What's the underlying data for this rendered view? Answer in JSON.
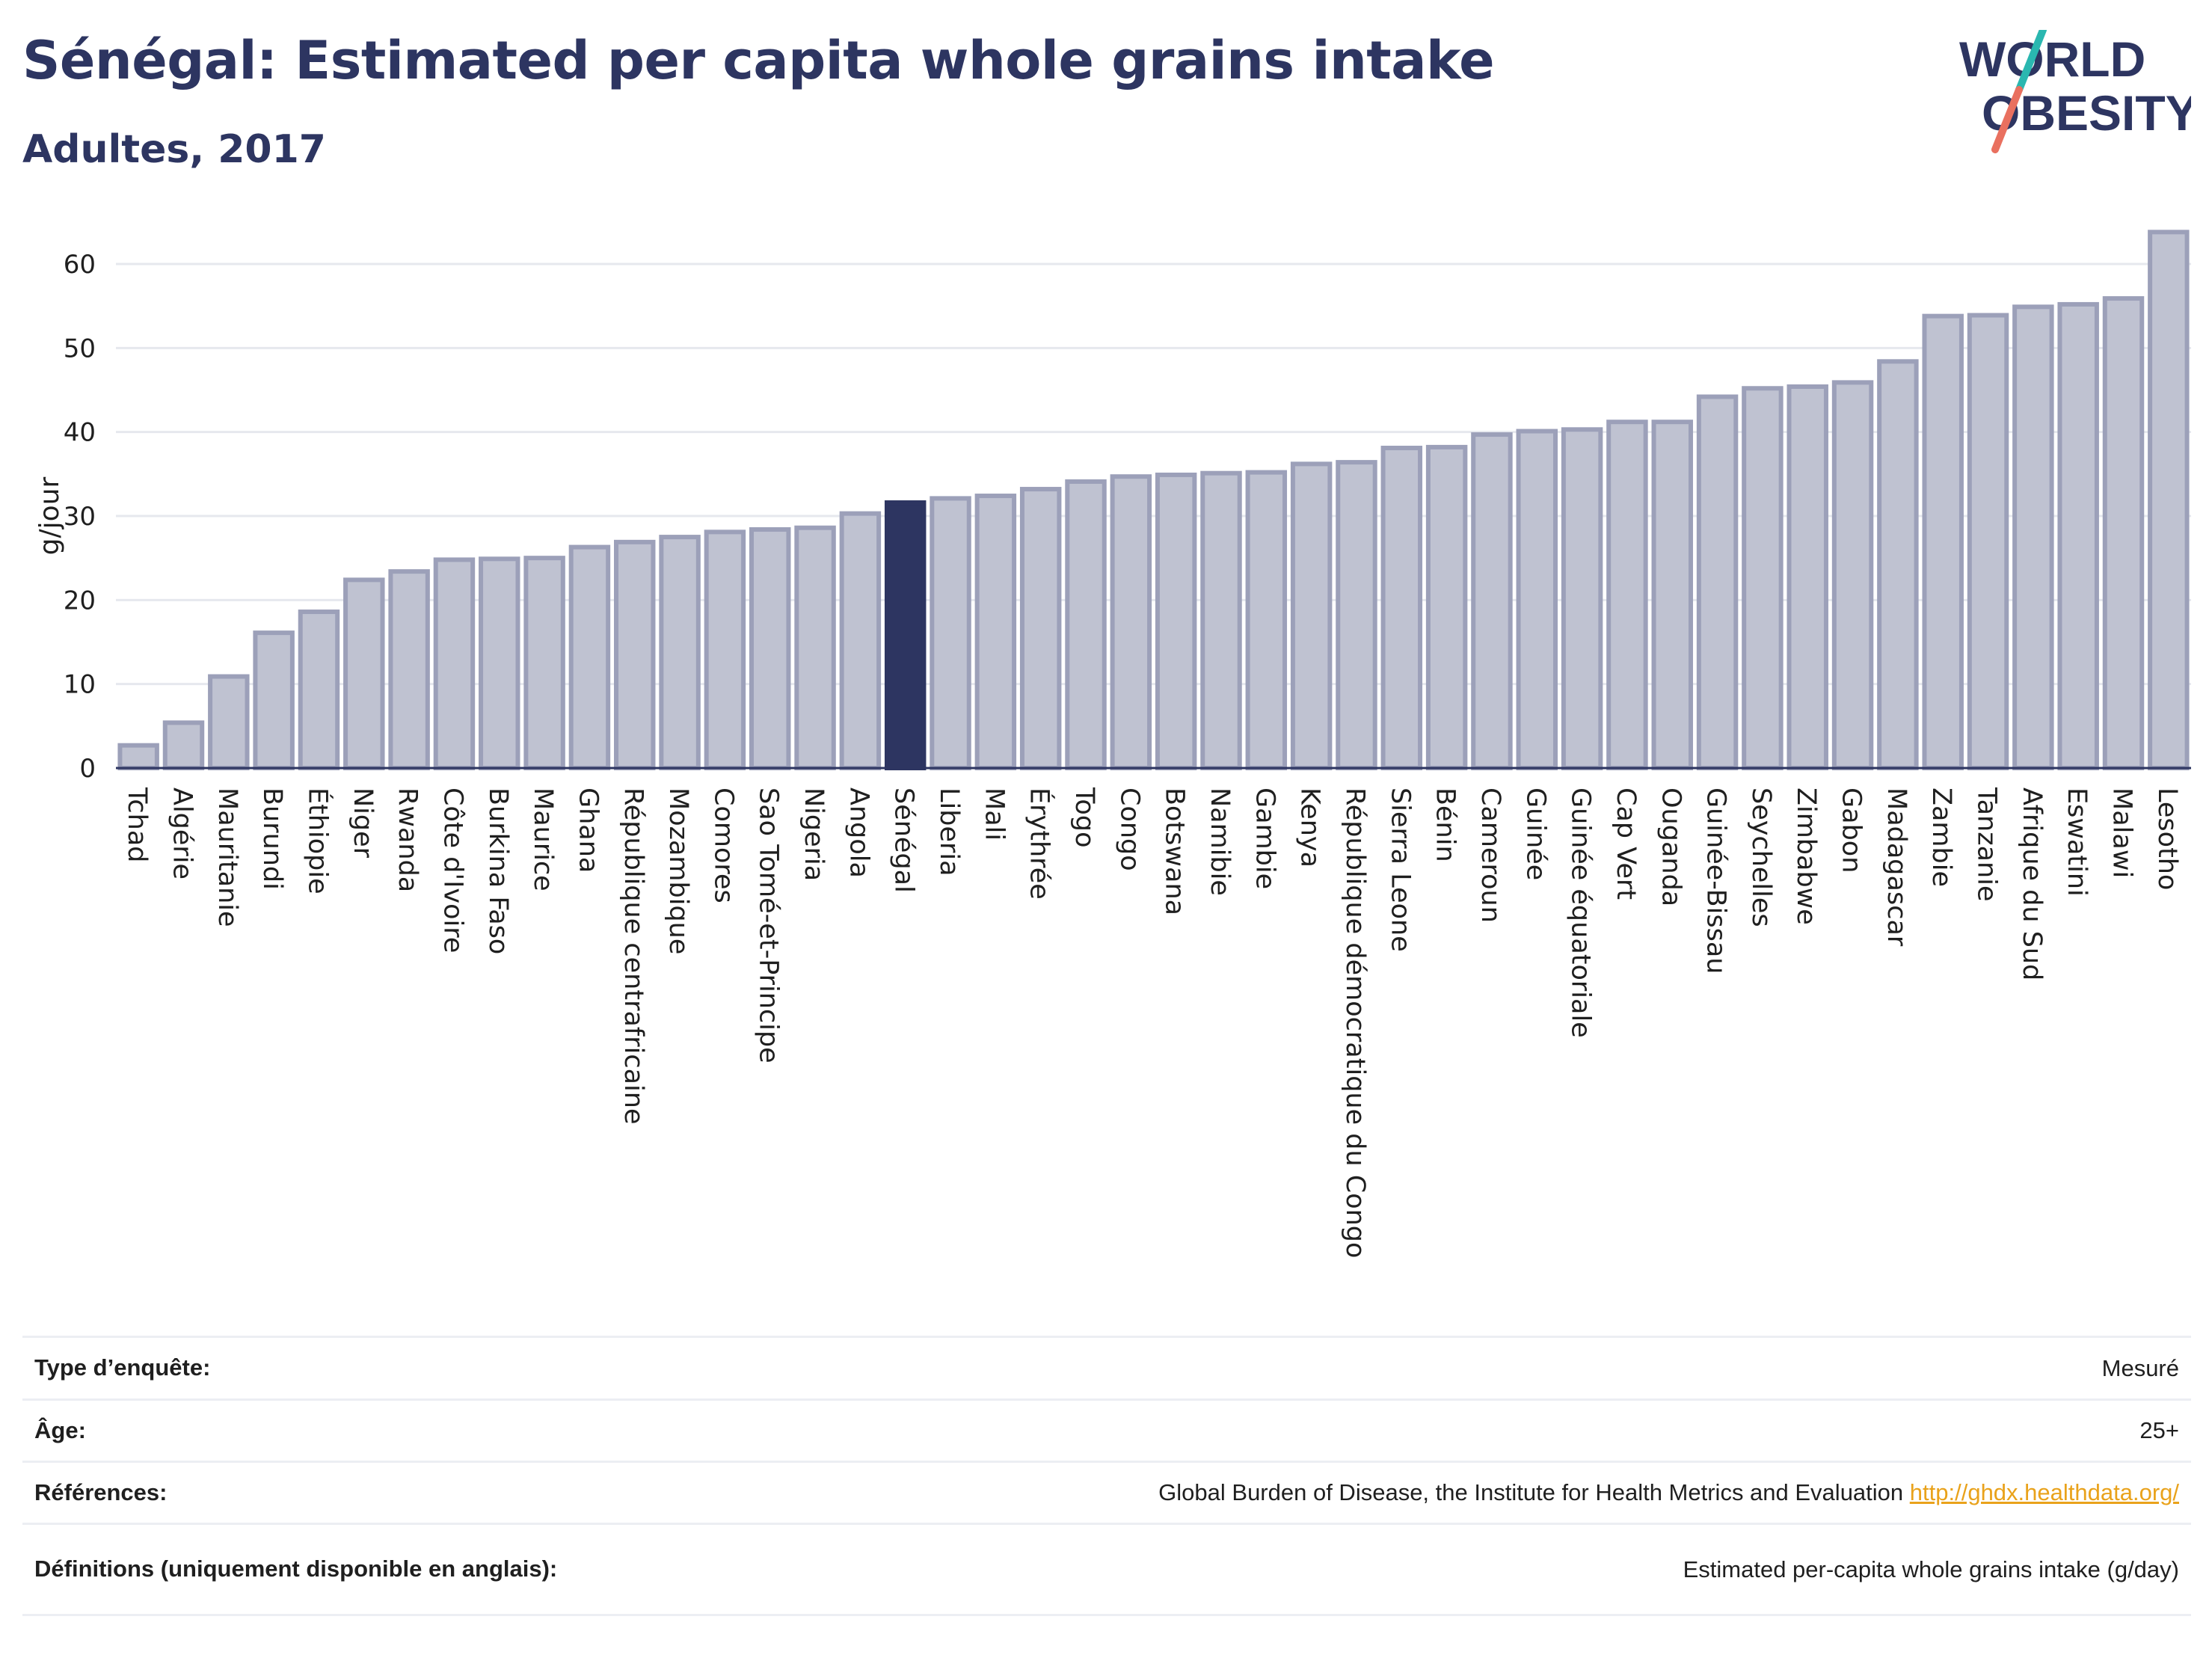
{
  "header": {
    "title": "Sénégal: Estimated per capita whole grains intake",
    "subtitle": "Adultes, 2017"
  },
  "logo": {
    "line1": "WORLD",
    "line2": "OBESITY",
    "accent_teal": "#2ab7b0",
    "accent_coral": "#e9705f",
    "text_color": "#2d3561"
  },
  "chart_data": {
    "type": "bar",
    "ylabel": "g/jour",
    "ylim": [
      0,
      65
    ],
    "yticks": [
      0,
      10,
      20,
      30,
      40,
      50,
      60
    ],
    "grid": true,
    "highlight": "Sénégal",
    "colors": {
      "bar": "#bfc2d1",
      "bar_edge": "#9ca0b9",
      "highlight": "#2d3561"
    },
    "categories": [
      "Tchad",
      "Algérie",
      "Mauritanie",
      "Burundi",
      "Éthiopie",
      "Niger",
      "Rwanda",
      "Côte d'Ivoire",
      "Burkina Faso",
      "Maurice",
      "Ghana",
      "République centrafricaine",
      "Mozambique",
      "Comores",
      "Sao Tomé-et-Principe",
      "Nigeria",
      "Angola",
      "Sénégal",
      "Liberia",
      "Mali",
      "Érythrée",
      "Togo",
      "Congo",
      "Botswana",
      "Namibie",
      "Gambie",
      "Kenya",
      "République démocratique du Congo",
      "Sierra Leone",
      "Bénin",
      "Cameroun",
      "Guinée",
      "Guinée équatoriale",
      "Cap Vert",
      "Ouganda",
      "Guinée-Bissau",
      "Seychelles",
      "Zimbabwe",
      "Gabon",
      "Madagascar",
      "Zambie",
      "Tanzanie",
      "Afrique du Sud",
      "Eswatini",
      "Malawi",
      "Lesotho"
    ],
    "values": [
      2.7,
      5.4,
      10.9,
      16.1,
      18.6,
      22.4,
      23.4,
      24.8,
      24.9,
      25.0,
      26.3,
      26.9,
      27.5,
      28.1,
      28.4,
      28.6,
      30.3,
      31.6,
      32.1,
      32.4,
      33.2,
      34.1,
      34.7,
      34.9,
      35.1,
      35.2,
      36.2,
      36.4,
      38.1,
      38.2,
      39.7,
      40.1,
      40.3,
      41.2,
      41.2,
      44.2,
      45.2,
      45.4,
      45.9,
      48.4,
      53.8,
      53.9,
      54.9,
      55.2,
      55.9,
      63.8
    ]
  },
  "info": {
    "rows": [
      {
        "label": "Type d’enquête:",
        "value": "Mesuré"
      },
      {
        "label": "Âge:",
        "value": "25+"
      },
      {
        "label": "Références:",
        "value": "Global Burden of Disease, the Institute for Health Metrics and Evaluation",
        "link": "http://ghdx.healthdata.org/"
      },
      {
        "label": "Définitions (uniquement disponible en anglais):",
        "value": "Estimated per-capita whole grains intake (g/day)"
      }
    ]
  }
}
